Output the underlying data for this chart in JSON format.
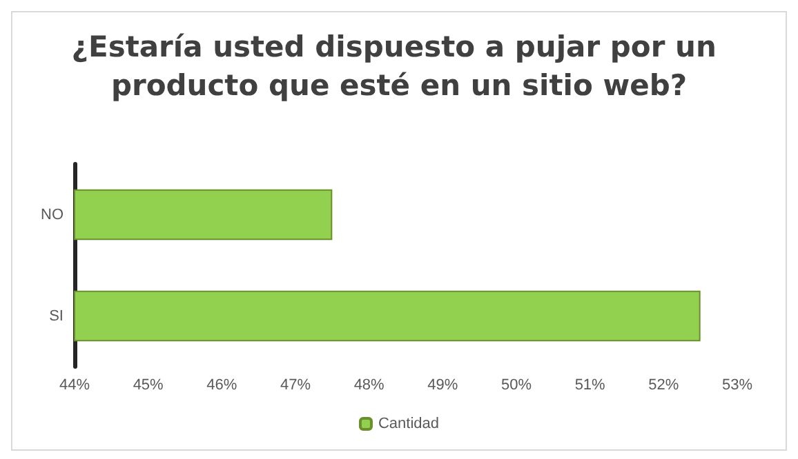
{
  "chart_data": {
    "type": "bar",
    "orientation": "horizontal",
    "title": "¿Estaría usted dispuesto a pujar por un producto que esté en un sitio web?",
    "categories": [
      "NO",
      "SI"
    ],
    "series": [
      {
        "name": "Cantidad",
        "color": "#92d050",
        "values": [
          47.5,
          52.5
        ]
      }
    ],
    "xlim": [
      44,
      53
    ],
    "xticks": [
      {
        "value": 44,
        "label": "44%"
      },
      {
        "value": 45,
        "label": "45%"
      },
      {
        "value": 46,
        "label": "46%"
      },
      {
        "value": 47,
        "label": "47%"
      },
      {
        "value": 48,
        "label": "48%"
      },
      {
        "value": 49,
        "label": "49%"
      },
      {
        "value": 50,
        "label": "50%"
      },
      {
        "value": 51,
        "label": "51%"
      },
      {
        "value": 52,
        "label": "52%"
      },
      {
        "value": 53,
        "label": "53%"
      }
    ],
    "legend": "bottom"
  }
}
